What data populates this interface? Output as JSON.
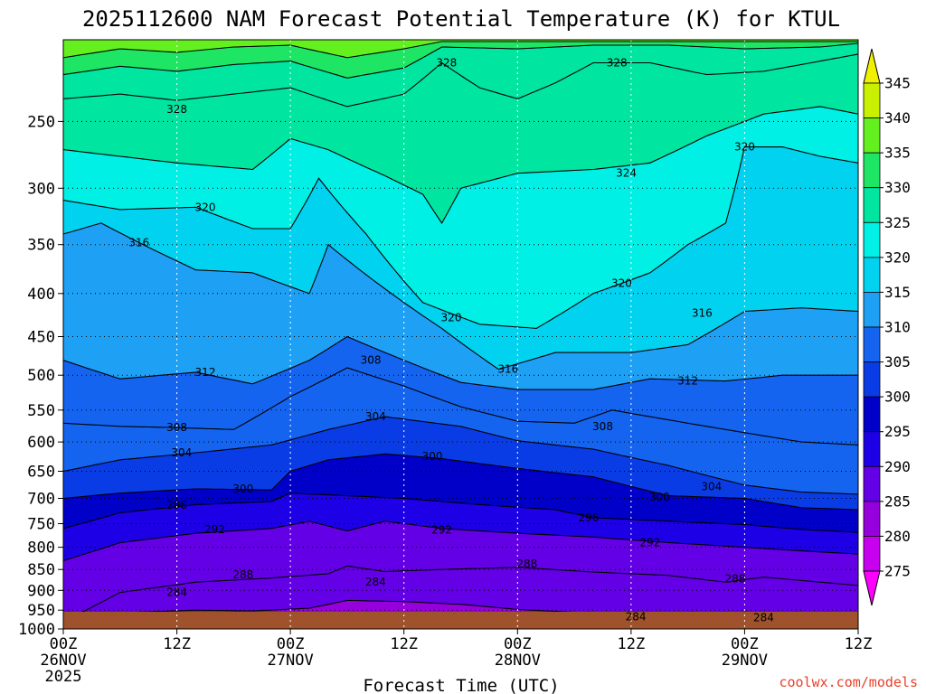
{
  "chart_data": {
    "type": "heatmap",
    "title": "2025112600 NAM Forecast Potential Temperature (K) for KTUL",
    "xlabel": "Forecast Time (UTC)",
    "ylabel": "",
    "credit": "coolwx.com/models",
    "y_ticks": [
      250,
      300,
      350,
      400,
      450,
      500,
      550,
      600,
      650,
      700,
      750,
      800,
      850,
      900,
      950,
      1000
    ],
    "y_range_hpa": [
      200,
      1000
    ],
    "x_ticks": [
      {
        "hour": 0,
        "label": "00Z",
        "date": "26NOV",
        "year": "2025"
      },
      {
        "hour": 12,
        "label": "12Z",
        "date": "",
        "year": ""
      },
      {
        "hour": 24,
        "label": "00Z",
        "date": "27NOV",
        "year": ""
      },
      {
        "hour": 36,
        "label": "12Z",
        "date": "",
        "year": ""
      },
      {
        "hour": 48,
        "label": "00Z",
        "date": "28NOV",
        "year": ""
      },
      {
        "hour": 60,
        "label": "12Z",
        "date": "",
        "year": ""
      },
      {
        "hour": 72,
        "label": "00Z",
        "date": "29NOV",
        "year": ""
      },
      {
        "hour": 84,
        "label": "12Z",
        "date": "",
        "year": ""
      }
    ],
    "x_range_hours": [
      0,
      84
    ],
    "grid": true,
    "colorbar": {
      "levels": [
        275,
        280,
        285,
        290,
        295,
        300,
        305,
        310,
        315,
        320,
        325,
        330,
        335,
        340,
        345
      ],
      "colors": [
        "#ff00ff",
        "#c800f0",
        "#9600dc",
        "#6400e6",
        "#1e00e6",
        "#0000c8",
        "#0a3ce6",
        "#1464f0",
        "#1ea0f5",
        "#00d2f0",
        "#00f0e6",
        "#00e6a0",
        "#1ee664",
        "#64f01e",
        "#c8f000",
        "#f0f000"
      ],
      "extend": "both"
    },
    "contour_interval": 2,
    "contour_labels": [
      {
        "hour": 33,
        "p": 880,
        "value": "284"
      },
      {
        "hour": 12,
        "p": 905,
        "value": "284"
      },
      {
        "hour": 60.5,
        "p": 967,
        "value": "284"
      },
      {
        "hour": 74,
        "p": 970,
        "value": "284"
      },
      {
        "hour": 19,
        "p": 862,
        "value": "288"
      },
      {
        "hour": 49,
        "p": 837,
        "value": "288"
      },
      {
        "hour": 71,
        "p": 872,
        "value": "288"
      },
      {
        "hour": 16,
        "p": 762,
        "value": "292"
      },
      {
        "hour": 40,
        "p": 763,
        "value": "292"
      },
      {
        "hour": 62,
        "p": 790,
        "value": "292"
      },
      {
        "hour": 12,
        "p": 713,
        "value": "296"
      },
      {
        "hour": 55.5,
        "p": 738,
        "value": "296"
      },
      {
        "hour": 19,
        "p": 682,
        "value": "300"
      },
      {
        "hour": 39,
        "p": 624,
        "value": "300"
      },
      {
        "hour": 63,
        "p": 697,
        "value": "300"
      },
      {
        "hour": 12.5,
        "p": 618,
        "value": "304"
      },
      {
        "hour": 33,
        "p": 560,
        "value": "304"
      },
      {
        "hour": 68.5,
        "p": 678,
        "value": "304"
      },
      {
        "hour": 12,
        "p": 577,
        "value": "308"
      },
      {
        "hour": 32.5,
        "p": 480,
        "value": "308"
      },
      {
        "hour": 57,
        "p": 575,
        "value": "308"
      },
      {
        "hour": 15,
        "p": 496,
        "value": "312"
      },
      {
        "hour": 66,
        "p": 508,
        "value": "312"
      },
      {
        "hour": 8,
        "p": 348,
        "value": "316"
      },
      {
        "hour": 47,
        "p": 492,
        "value": "316"
      },
      {
        "hour": 67.5,
        "p": 422,
        "value": "316"
      },
      {
        "hour": 15,
        "p": 316,
        "value": "320"
      },
      {
        "hour": 41,
        "p": 427,
        "value": "320"
      },
      {
        "hour": 59,
        "p": 389,
        "value": "320"
      },
      {
        "hour": 72,
        "p": 268,
        "value": "320"
      },
      {
        "hour": 59.5,
        "p": 288,
        "value": "324"
      },
      {
        "hour": 12,
        "p": 242,
        "value": "328"
      },
      {
        "hour": 40.5,
        "p": 213,
        "value": "328"
      },
      {
        "hour": 58.5,
        "p": 213,
        "value": "328"
      }
    ],
    "contours": [
      {
        "value": 284,
        "points": [
          [
            0,
            1000
          ],
          [
            4,
            975
          ],
          [
            8,
            955
          ],
          [
            14,
            950
          ],
          [
            20,
            952
          ],
          [
            26,
            945
          ],
          [
            30,
            925
          ],
          [
            36,
            928
          ],
          [
            42,
            935
          ],
          [
            48,
            948
          ],
          [
            56,
            958
          ],
          [
            62,
            965
          ],
          [
            70,
            975
          ],
          [
            76,
            960
          ],
          [
            84,
            958
          ]
        ]
      },
      {
        "value": 288,
        "points": [
          [
            0,
            980
          ],
          [
            6,
            905
          ],
          [
            14,
            880
          ],
          [
            22,
            870
          ],
          [
            28,
            860
          ],
          [
            30,
            842
          ],
          [
            34,
            855
          ],
          [
            40,
            850
          ],
          [
            48,
            845
          ],
          [
            56,
            856
          ],
          [
            64,
            864
          ],
          [
            70,
            880
          ],
          [
            74,
            868
          ],
          [
            80,
            880
          ],
          [
            84,
            888
          ]
        ]
      },
      {
        "value": 292,
        "points": [
          [
            0,
            830
          ],
          [
            6,
            790
          ],
          [
            14,
            770
          ],
          [
            22,
            760
          ],
          [
            26,
            745
          ],
          [
            30,
            765
          ],
          [
            34,
            745
          ],
          [
            40,
            760
          ],
          [
            48,
            770
          ],
          [
            56,
            778
          ],
          [
            64,
            790
          ],
          [
            72,
            800
          ],
          [
            78,
            808
          ],
          [
            84,
            815
          ]
        ]
      },
      {
        "value": 296,
        "points": [
          [
            0,
            760
          ],
          [
            6,
            728
          ],
          [
            14,
            712
          ],
          [
            22,
            706
          ],
          [
            24,
            690
          ],
          [
            30,
            695
          ],
          [
            36,
            700
          ],
          [
            44,
            712
          ],
          [
            52,
            722
          ],
          [
            56,
            738
          ],
          [
            64,
            745
          ],
          [
            72,
            752
          ],
          [
            78,
            762
          ],
          [
            84,
            768
          ]
        ]
      },
      {
        "value": 300,
        "points": [
          [
            0,
            700
          ],
          [
            6,
            690
          ],
          [
            14,
            682
          ],
          [
            22,
            684
          ],
          [
            24,
            650
          ],
          [
            28,
            630
          ],
          [
            34,
            620
          ],
          [
            40,
            628
          ],
          [
            48,
            645
          ],
          [
            56,
            660
          ],
          [
            64,
            695
          ],
          [
            72,
            700
          ],
          [
            78,
            718
          ],
          [
            84,
            722
          ]
        ]
      },
      {
        "value": 304,
        "points": [
          [
            0,
            650
          ],
          [
            6,
            630
          ],
          [
            14,
            618
          ],
          [
            22,
            605
          ],
          [
            28,
            580
          ],
          [
            34,
            560
          ],
          [
            42,
            575
          ],
          [
            48,
            598
          ],
          [
            56,
            612
          ],
          [
            64,
            640
          ],
          [
            72,
            675
          ],
          [
            78,
            688
          ],
          [
            84,
            692
          ]
        ]
      },
      {
        "value": 308,
        "points": [
          [
            0,
            570
          ],
          [
            6,
            575
          ],
          [
            12,
            577
          ],
          [
            18,
            580
          ],
          [
            24,
            530
          ],
          [
            30,
            490
          ],
          [
            36,
            515
          ],
          [
            42,
            545
          ],
          [
            48,
            567
          ],
          [
            54,
            570
          ],
          [
            58,
            550
          ],
          [
            66,
            570
          ],
          [
            72,
            585
          ],
          [
            78,
            600
          ],
          [
            84,
            605
          ]
        ]
      },
      {
        "value": 312,
        "points": [
          [
            0,
            480
          ],
          [
            6,
            505
          ],
          [
            14,
            496
          ],
          [
            20,
            512
          ],
          [
            26,
            480
          ],
          [
            30,
            450
          ],
          [
            36,
            480
          ],
          [
            42,
            510
          ],
          [
            48,
            520
          ],
          [
            56,
            520
          ],
          [
            62,
            505
          ],
          [
            70,
            508
          ],
          [
            76,
            500
          ],
          [
            84,
            500
          ]
        ]
      },
      {
        "value": 316,
        "points": [
          [
            0,
            340
          ],
          [
            4,
            330
          ],
          [
            8,
            348
          ],
          [
            14,
            375
          ],
          [
            20,
            378
          ],
          [
            26,
            400
          ],
          [
            28,
            350
          ],
          [
            32,
            380
          ],
          [
            40,
            440
          ],
          [
            46,
            492
          ],
          [
            52,
            470
          ],
          [
            60,
            470
          ],
          [
            66,
            460
          ],
          [
            72,
            420
          ],
          [
            78,
            416
          ],
          [
            84,
            420
          ]
        ]
      },
      {
        "value": 320,
        "points": [
          [
            0,
            310
          ],
          [
            6,
            318
          ],
          [
            14,
            316
          ],
          [
            20,
            335
          ],
          [
            24,
            335
          ],
          [
            27,
            292
          ],
          [
            32,
            340
          ],
          [
            38,
            410
          ],
          [
            44,
            435
          ],
          [
            50,
            440
          ],
          [
            56,
            400
          ],
          [
            62,
            378
          ],
          [
            66,
            350
          ],
          [
            70,
            330
          ],
          [
            72,
            268
          ],
          [
            76,
            268
          ],
          [
            80,
            275
          ],
          [
            84,
            280
          ]
        ]
      },
      {
        "value": 324,
        "points": [
          [
            0,
            270
          ],
          [
            6,
            275
          ],
          [
            12,
            280
          ],
          [
            20,
            285
          ],
          [
            24,
            262
          ],
          [
            28,
            270
          ],
          [
            34,
            290
          ],
          [
            38,
            305
          ],
          [
            40,
            330
          ],
          [
            42,
            300
          ],
          [
            48,
            288
          ],
          [
            56,
            285
          ],
          [
            62,
            280
          ],
          [
            68,
            260
          ],
          [
            74,
            245
          ],
          [
            80,
            240
          ],
          [
            84,
            245
          ]
        ]
      },
      {
        "value": 328,
        "points": [
          [
            0,
            235
          ],
          [
            6,
            232
          ],
          [
            12,
            236
          ],
          [
            18,
            232
          ],
          [
            24,
            228
          ],
          [
            30,
            240
          ],
          [
            36,
            232
          ],
          [
            40,
            213
          ],
          [
            44,
            228
          ],
          [
            48,
            235
          ],
          [
            52,
            225
          ],
          [
            56,
            213
          ],
          [
            62,
            213
          ],
          [
            68,
            220
          ],
          [
            74,
            218
          ],
          [
            80,
            212
          ],
          [
            84,
            208
          ]
        ]
      },
      {
        "value": 332,
        "points": [
          [
            0,
            220
          ],
          [
            6,
            215
          ],
          [
            12,
            218
          ],
          [
            18,
            214
          ],
          [
            24,
            212
          ],
          [
            30,
            222
          ],
          [
            36,
            216
          ],
          [
            40,
            204
          ],
          [
            48,
            205
          ],
          [
            56,
            203
          ],
          [
            64,
            203
          ],
          [
            72,
            205
          ],
          [
            80,
            204
          ],
          [
            84,
            202
          ]
        ]
      },
      {
        "value": 336,
        "points": [
          [
            0,
            210
          ],
          [
            6,
            205
          ],
          [
            12,
            207
          ],
          [
            18,
            204
          ],
          [
            24,
            203
          ],
          [
            30,
            210
          ],
          [
            36,
            205
          ],
          [
            40,
            201
          ]
        ]
      }
    ]
  }
}
